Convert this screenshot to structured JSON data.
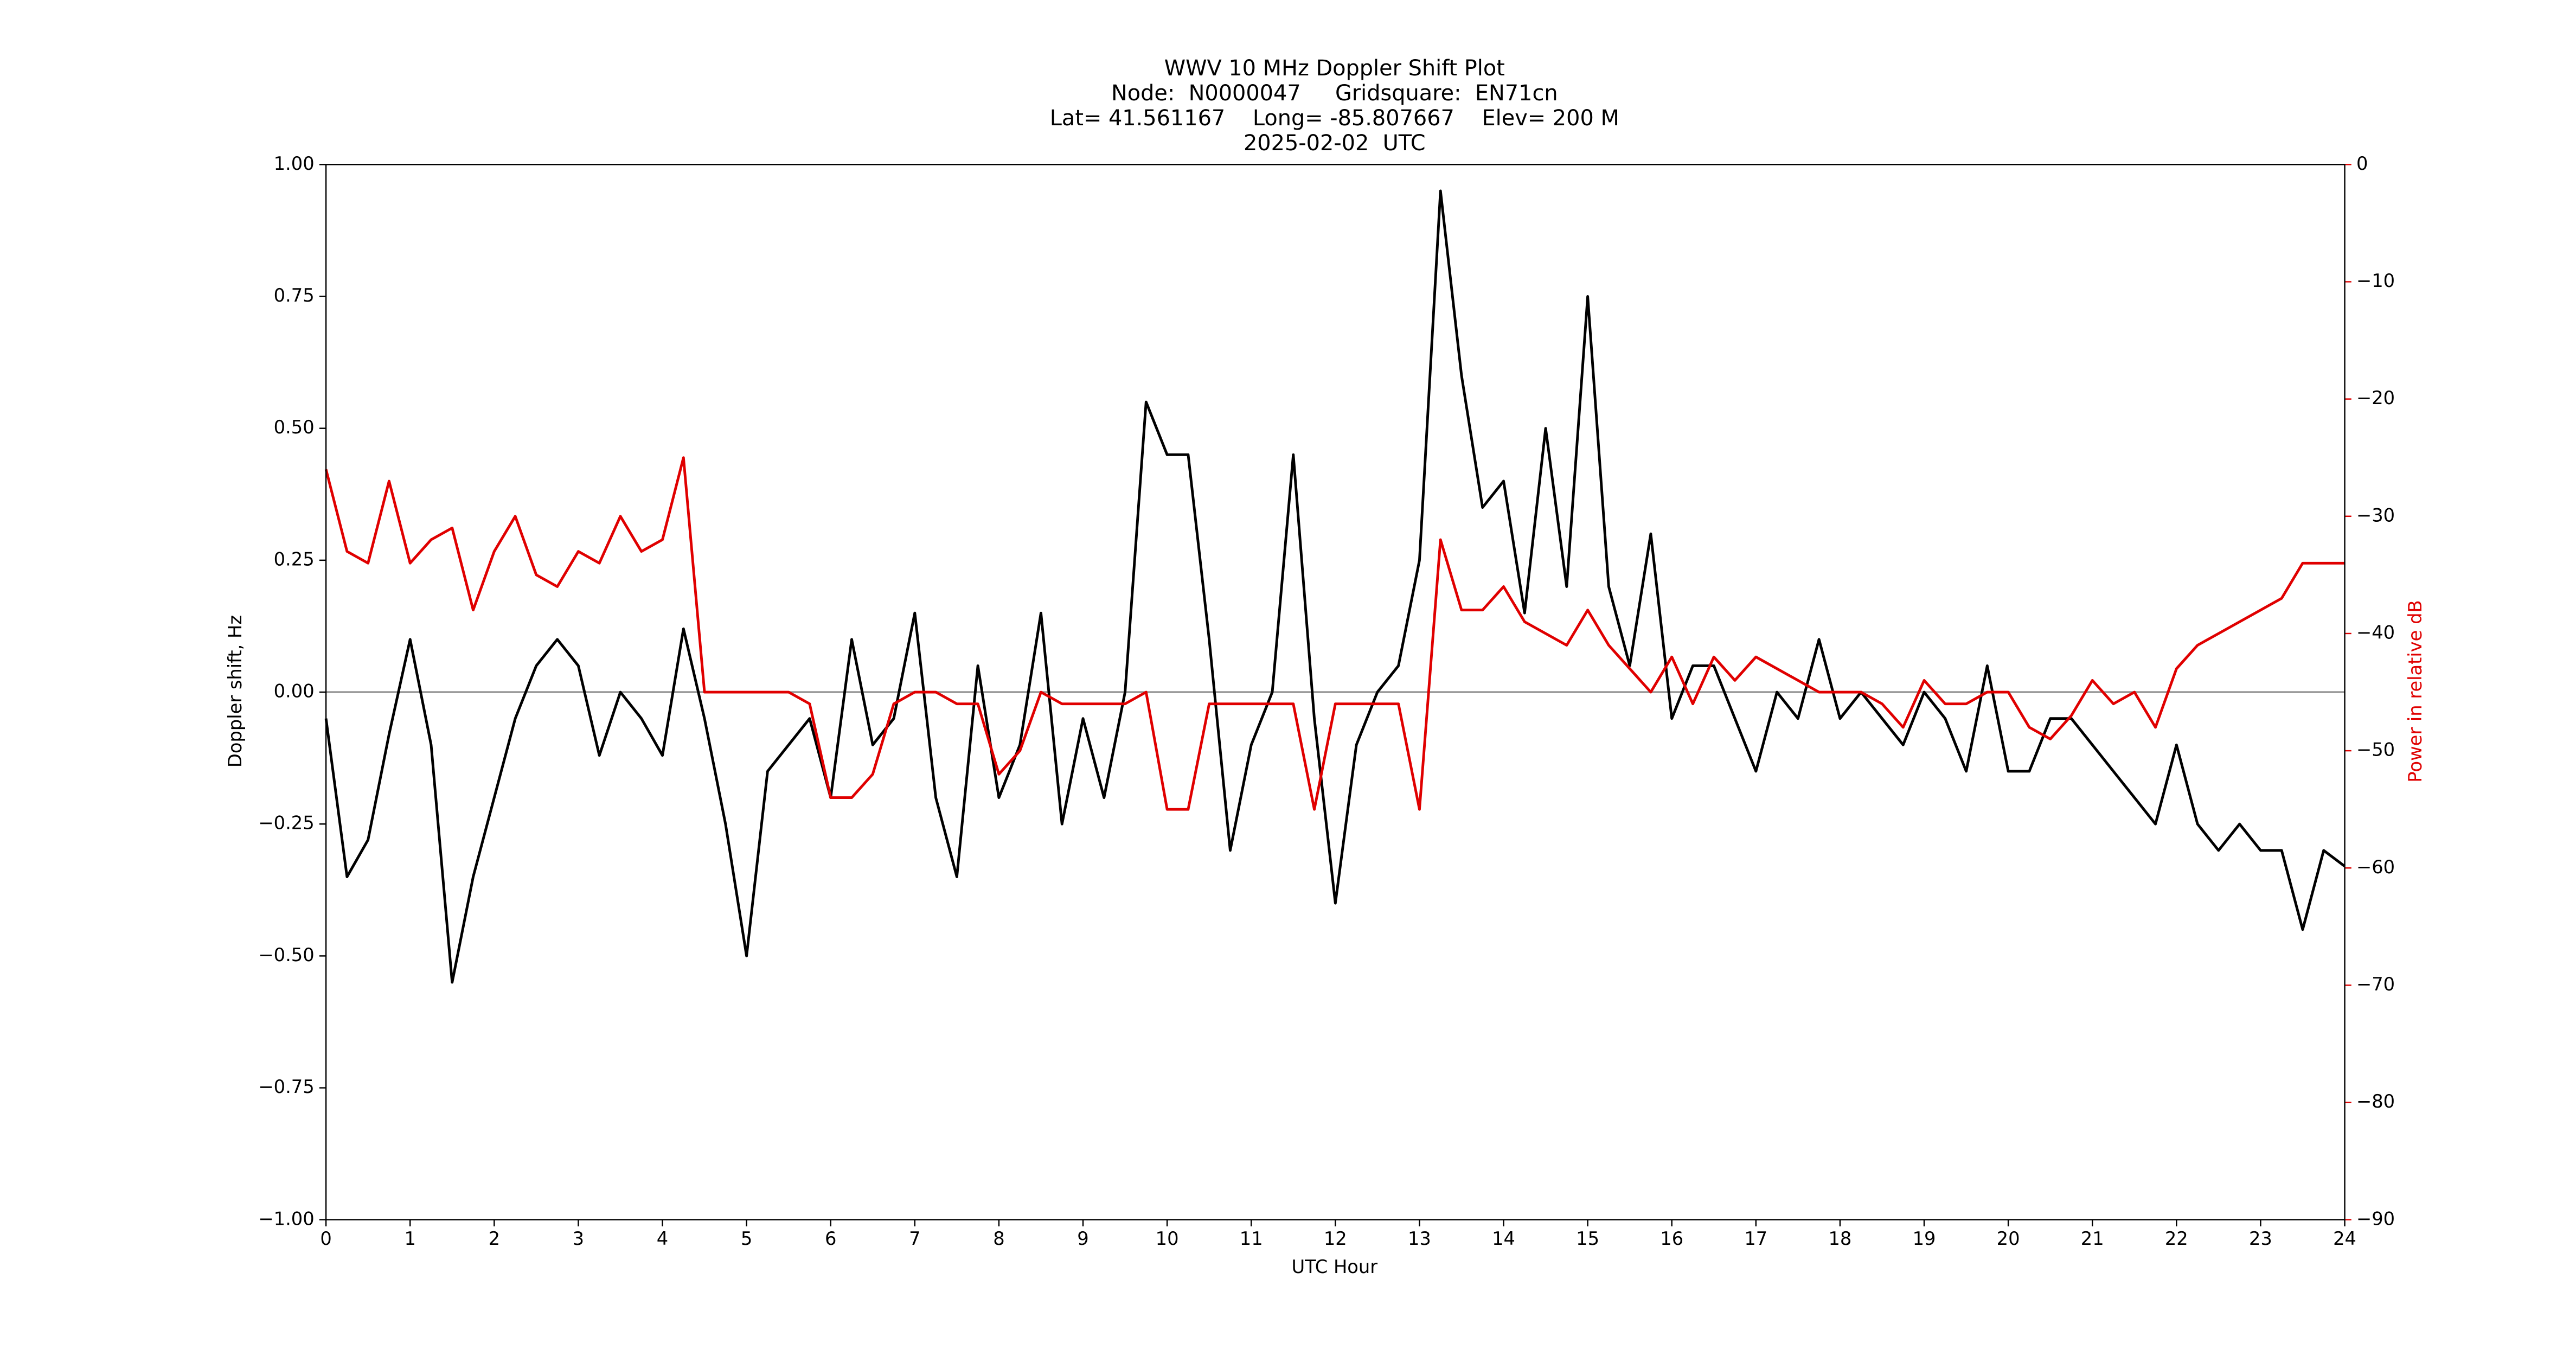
{
  "chart_data": {
    "type": "line",
    "title": "WWV 10 MHz Doppler Shift Plot",
    "subtitle": [
      "Node:  N0000047     Gridsquare:  EN71cn",
      "Lat= 41.561167    Long= -85.807667    Elev= 200 M",
      "2025-02-02  UTC"
    ],
    "xlabel": "UTC Hour",
    "ylabel": "Doppler shift, Hz",
    "y2label": "Power in relative dB",
    "xlim": [
      0,
      24
    ],
    "xticks": [
      0,
      1,
      2,
      3,
      4,
      5,
      6,
      7,
      8,
      9,
      10,
      11,
      12,
      13,
      14,
      15,
      16,
      17,
      18,
      19,
      20,
      21,
      22,
      23,
      24
    ],
    "ylim": [
      -1,
      1
    ],
    "yticks": [
      {
        "value": -1,
        "label": "−1.00"
      },
      {
        "value": -0.75,
        "label": "−0.75"
      },
      {
        "value": -0.5,
        "label": "−0.50"
      },
      {
        "value": -0.25,
        "label": "−0.25"
      },
      {
        "value": 0,
        "label": "0.00"
      },
      {
        "value": 0.25,
        "label": "0.25"
      },
      {
        "value": 0.5,
        "label": "0.50"
      },
      {
        "value": 0.75,
        "label": "0.75"
      },
      {
        "value": 1,
        "label": "1.00"
      }
    ],
    "y2lim": [
      -90,
      0
    ],
    "y2ticks": [
      {
        "value": -90,
        "label": "−90"
      },
      {
        "value": -80,
        "label": "−80"
      },
      {
        "value": -70,
        "label": "−70"
      },
      {
        "value": -60,
        "label": "−60"
      },
      {
        "value": -50,
        "label": "−50"
      },
      {
        "value": -40,
        "label": "−40"
      },
      {
        "value": -30,
        "label": "−30"
      },
      {
        "value": -20,
        "label": "−20"
      },
      {
        "value": -10,
        "label": "−10"
      },
      0
    ],
    "y2color": "#e00000",
    "reference_line": 0,
    "x": [
      0,
      0.25,
      0.5,
      0.75,
      1,
      1.25,
      1.5,
      1.75,
      2,
      2.25,
      2.5,
      2.75,
      3,
      3.25,
      3.5,
      3.75,
      4,
      4.25,
      4.5,
      4.75,
      5,
      5.25,
      5.5,
      5.75,
      6,
      6.25,
      6.5,
      6.75,
      7,
      7.25,
      7.5,
      7.75,
      8,
      8.25,
      8.5,
      8.75,
      9,
      9.25,
      9.5,
      9.75,
      10,
      10.25,
      10.5,
      10.75,
      11,
      11.25,
      11.5,
      11.75,
      12,
      12.25,
      12.5,
      12.75,
      13,
      13.25,
      13.5,
      13.75,
      14,
      14.25,
      14.5,
      14.75,
      15,
      15.25,
      15.5,
      15.75,
      16,
      16.25,
      16.5,
      16.75,
      17,
      17.25,
      17.5,
      17.75,
      18,
      18.25,
      18.5,
      18.75,
      19,
      19.25,
      19.5,
      19.75,
      20,
      20.25,
      20.5,
      20.75,
      21,
      21.25,
      21.5,
      21.75,
      22,
      22.25,
      22.5,
      22.75,
      23,
      23.25,
      23.5,
      23.75,
      24
    ],
    "series": [
      {
        "name": "Doppler shift",
        "color": "#000000",
        "values": [
          -0.05,
          -0.35,
          -0.28,
          -0.08,
          0.1,
          -0.1,
          -0.55,
          -0.35,
          -0.2,
          -0.05,
          0.05,
          0.1,
          0.05,
          -0.12,
          0,
          -0.05,
          -0.12,
          0.12,
          -0.05,
          -0.25,
          -0.5,
          -0.15,
          -0.1,
          -0.05,
          -0.2,
          0.1,
          -0.1,
          -0.05,
          0.15,
          -0.2,
          -0.35,
          0.05,
          -0.2,
          -0.1,
          0.15,
          -0.25,
          -0.05,
          -0.2,
          0,
          0.55,
          0.45,
          0.45,
          0.1,
          -0.3,
          -0.1,
          0,
          0.45,
          -0.05,
          -0.4,
          -0.1,
          0,
          0.05,
          0.25,
          0.95,
          0.6,
          0.35,
          0.4,
          0.15,
          0.5,
          0.2,
          0.75,
          0.2,
          0.05,
          0.3,
          -0.05,
          0.05,
          0.05,
          -0.05,
          -0.15,
          0,
          -0.05,
          0.1,
          -0.05,
          0,
          -0.05,
          -0.1,
          0,
          -0.05,
          -0.15,
          0.05,
          -0.15,
          -0.15,
          -0.05,
          -0.05,
          -0.1,
          -0.15,
          -0.2,
          -0.25,
          -0.1,
          -0.25,
          -0.3,
          -0.25,
          -0.3,
          -0.3,
          -0.45,
          -0.3,
          -0.33
        ]
      },
      {
        "name": "Power",
        "color": "#e00000",
        "axis": "y2",
        "values": [
          -26,
          -33,
          -34,
          -27,
          -34,
          -32,
          -31,
          -38,
          -33,
          -30,
          -35,
          -36,
          -33,
          -34,
          -30,
          -33,
          -32,
          -25,
          -45,
          -45,
          -45,
          -45,
          -45,
          -46,
          -54,
          -54,
          -52,
          -46,
          -45,
          -45,
          -46,
          -46,
          -52,
          -50,
          -45,
          -46,
          -46,
          -46,
          -46,
          -45,
          -55,
          -55,
          -46,
          -46,
          -46,
          -46,
          -46,
          -55,
          -46,
          -46,
          -46,
          -46,
          -55,
          -32,
          -38,
          -38,
          -36,
          -39,
          -40,
          -41,
          -38,
          -41,
          -43,
          -45,
          -42,
          -46,
          -42,
          -44,
          -42,
          -43,
          -44,
          -45,
          -45,
          -45,
          -46,
          -48,
          -44,
          -46,
          -46,
          -45,
          -45,
          -48,
          -49,
          -47,
          -44,
          -46,
          -45,
          -48,
          -43,
          -41,
          -40,
          -39,
          -38,
          -37,
          -34,
          -34,
          -34
        ]
      }
    ]
  }
}
